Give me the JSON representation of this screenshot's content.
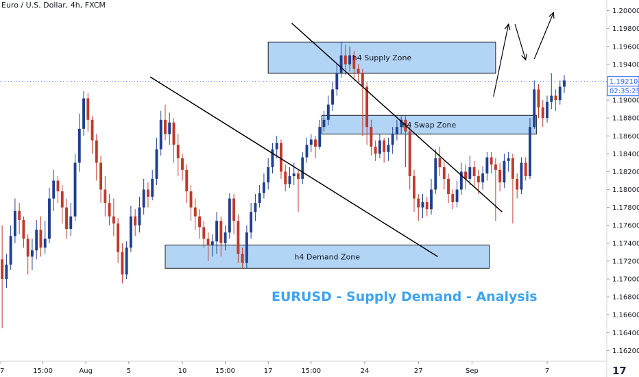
{
  "header": {
    "title": "Euro / U.S. Dollar, 4h, FXCM"
  },
  "caption": "EURUSD - Supply Demand - Analysis",
  "zones": [
    {
      "label": "h4 Supply Zone",
      "x1": 62.5,
      "x2": 115.5,
      "ylo": 1.193,
      "yhi": 1.1965,
      "color": "#7fb8ef"
    },
    {
      "label": "h4 Swap Zone",
      "x1": 75,
      "x2": 125,
      "ylo": 1.1862,
      "yhi": 1.1883,
      "color": "#7fb8ef"
    },
    {
      "label": "h4 Demand Zone",
      "x1": 38.5,
      "x2": 114,
      "ylo": 1.1712,
      "yhi": 1.1738,
      "color": "#7fb8ef"
    }
  ],
  "price_tags": [
    {
      "text": "1.19210",
      "kind": "current"
    },
    {
      "text": "02:35:25",
      "kind": "timer"
    }
  ],
  "chart_data": {
    "type": "candlestick",
    "symbol": "EURUSD",
    "interval": "4h",
    "x_range": [
      0,
      141.4
    ],
    "ylim": [
      1.1608,
      1.2012
    ],
    "grid": false,
    "y_ticks": [
      1.162,
      1.164,
      1.166,
      1.168,
      1.17,
      1.172,
      1.174,
      1.176,
      1.178,
      1.18,
      1.182,
      1.184,
      1.186,
      1.188,
      1.19,
      1.192,
      1.194,
      1.196,
      1.198,
      1.2
    ],
    "y_tick_labels": [
      "1.16200",
      "1.16400",
      "1.16600",
      "1.16800",
      "1.17000",
      "1.17200",
      "1.17400",
      "1.17600",
      "1.17800",
      "1.18000",
      "1.18200",
      "1.18400",
      "1.18600",
      "1.18800",
      "1.19000",
      "1.19200",
      "1.19400",
      "1.19600",
      "1.19800",
      "1.20000"
    ],
    "x_ticks": [
      {
        "x": 0,
        "label": "27"
      },
      {
        "x": 10,
        "label": "15:00"
      },
      {
        "x": 20,
        "label": "Aug"
      },
      {
        "x": 30,
        "label": "5"
      },
      {
        "x": 42.5,
        "label": "10"
      },
      {
        "x": 52.5,
        "label": "15:00"
      },
      {
        "x": 62.5,
        "label": "17"
      },
      {
        "x": 72.5,
        "label": "15:00"
      },
      {
        "x": 85,
        "label": "24"
      },
      {
        "x": 97.5,
        "label": "27"
      },
      {
        "x": 110,
        "label": "Sep"
      },
      {
        "x": 127.5,
        "label": "7"
      }
    ],
    "current_price": 1.1921,
    "candles": [
      [
        1.1722,
        1.17,
        1.176,
        1.1645
      ],
      [
        1.17,
        1.1716,
        1.1728,
        1.169
      ],
      [
        1.1716,
        1.1748,
        1.176,
        1.171
      ],
      [
        1.1748,
        1.1776,
        1.179,
        1.174
      ],
      [
        1.1776,
        1.1766,
        1.1785,
        1.175
      ],
      [
        1.1766,
        1.1745,
        1.177,
        1.1735
      ],
      [
        1.1745,
        1.1725,
        1.175,
        1.1705
      ],
      [
        1.1725,
        1.1732,
        1.1745,
        1.171
      ],
      [
        1.1732,
        1.1755,
        1.1766,
        1.1722
      ],
      [
        1.1755,
        1.1735,
        1.177,
        1.1725
      ],
      [
        1.1735,
        1.1745,
        1.1765,
        1.1728
      ],
      [
        1.1745,
        1.179,
        1.1802,
        1.174
      ],
      [
        1.179,
        1.181,
        1.1822,
        1.1776
      ],
      [
        1.181,
        1.1798,
        1.1815,
        1.1785
      ],
      [
        1.1798,
        1.178,
        1.1805,
        1.1762
      ],
      [
        1.178,
        1.1756,
        1.179,
        1.1745
      ],
      [
        1.1756,
        1.177,
        1.1785,
        1.1748
      ],
      [
        1.177,
        1.183,
        1.184,
        1.1765
      ],
      [
        1.183,
        1.1868,
        1.1885,
        1.182
      ],
      [
        1.1868,
        1.1902,
        1.191,
        1.186
      ],
      [
        1.1902,
        1.1878,
        1.1908,
        1.1865
      ],
      [
        1.1878,
        1.1855,
        1.1882,
        1.184
      ],
      [
        1.1855,
        1.183,
        1.1862,
        1.181
      ],
      [
        1.183,
        1.18,
        1.1838,
        1.1785
      ],
      [
        1.18,
        1.1785,
        1.1815,
        1.177
      ],
      [
        1.1785,
        1.177,
        1.1795,
        1.176
      ],
      [
        1.177,
        1.1762,
        1.179,
        1.1748
      ],
      [
        1.1762,
        1.173,
        1.1768,
        1.1718
      ],
      [
        1.173,
        1.1705,
        1.174,
        1.1695
      ],
      [
        1.1705,
        1.1735,
        1.1742,
        1.17
      ],
      [
        1.1735,
        1.177,
        1.1782,
        1.173
      ],
      [
        1.177,
        1.176,
        1.1778,
        1.1748
      ],
      [
        1.176,
        1.178,
        1.1792,
        1.1752
      ],
      [
        1.178,
        1.18,
        1.1812,
        1.1772
      ],
      [
        1.18,
        1.1792,
        1.1808,
        1.178
      ],
      [
        1.1792,
        1.1812,
        1.1822,
        1.1788
      ],
      [
        1.1812,
        1.1845,
        1.1858,
        1.1805
      ],
      [
        1.1845,
        1.1878,
        1.1888,
        1.1838
      ],
      [
        1.1878,
        1.1862,
        1.1895,
        1.1855
      ],
      [
        1.1862,
        1.1875,
        1.1886,
        1.185
      ],
      [
        1.1875,
        1.185,
        1.188,
        1.183
      ],
      [
        1.185,
        1.1835,
        1.1862,
        1.1815
      ],
      [
        1.1835,
        1.1822,
        1.184,
        1.181
      ],
      [
        1.1822,
        1.1798,
        1.1828,
        1.1785
      ],
      [
        1.1798,
        1.178,
        1.1805,
        1.1765
      ],
      [
        1.178,
        1.177,
        1.179,
        1.1755
      ],
      [
        1.177,
        1.1758,
        1.1778,
        1.1745
      ],
      [
        1.1758,
        1.1745,
        1.1765,
        1.1735
      ],
      [
        1.1745,
        1.1738,
        1.1752,
        1.172
      ],
      [
        1.1738,
        1.1742,
        1.175,
        1.1725
      ],
      [
        1.1742,
        1.1765,
        1.1775,
        1.1728
      ],
      [
        1.1765,
        1.174,
        1.177,
        1.1725
      ],
      [
        1.174,
        1.1752,
        1.176,
        1.1732
      ],
      [
        1.1752,
        1.179,
        1.1796,
        1.1745
      ],
      [
        1.179,
        1.1765,
        1.1795,
        1.175
      ],
      [
        1.1765,
        1.1728,
        1.1772,
        1.1718
      ],
      [
        1.1728,
        1.1718,
        1.1735,
        1.1712
      ],
      [
        1.1718,
        1.1752,
        1.176,
        1.1712
      ],
      [
        1.1752,
        1.1775,
        1.1785,
        1.1745
      ],
      [
        1.1775,
        1.1785,
        1.1795,
        1.1765
      ],
      [
        1.1785,
        1.1796,
        1.1805,
        1.178
      ],
      [
        1.1796,
        1.1808,
        1.1818,
        1.179
      ],
      [
        1.1808,
        1.1825,
        1.1835,
        1.18
      ],
      [
        1.1825,
        1.1845,
        1.1852,
        1.1818
      ],
      [
        1.1845,
        1.1852,
        1.186,
        1.1835
      ],
      [
        1.1852,
        1.182,
        1.1856,
        1.1812
      ],
      [
        1.182,
        1.1806,
        1.1828,
        1.1798
      ],
      [
        1.1806,
        1.1815,
        1.1825,
        1.1802
      ],
      [
        1.1815,
        1.1818,
        1.183,
        1.1805
      ],
      [
        1.1818,
        1.1812,
        1.1822,
        1.1775
      ],
      [
        1.1812,
        1.1836,
        1.1842,
        1.1806
      ],
      [
        1.1836,
        1.185,
        1.1858,
        1.183
      ],
      [
        1.185,
        1.1856,
        1.1862,
        1.1842
      ],
      [
        1.1856,
        1.1848,
        1.186,
        1.1835
      ],
      [
        1.1848,
        1.187,
        1.1878,
        1.1845
      ],
      [
        1.187,
        1.1878,
        1.1888,
        1.1865
      ],
      [
        1.1878,
        1.1895,
        1.1905,
        1.1872
      ],
      [
        1.1895,
        1.1912,
        1.192,
        1.1888
      ],
      [
        1.1912,
        1.193,
        1.194,
        1.1905
      ],
      [
        1.193,
        1.195,
        1.1965,
        1.1925
      ],
      [
        1.195,
        1.194,
        1.1962,
        1.1928
      ],
      [
        1.194,
        1.195,
        1.196,
        1.1932
      ],
      [
        1.195,
        1.1935,
        1.1955,
        1.1922
      ],
      [
        1.1935,
        1.193,
        1.194,
        1.192
      ],
      [
        1.193,
        1.1915,
        1.1935,
        1.186
      ],
      [
        1.1915,
        1.187,
        1.192,
        1.185
      ],
      [
        1.187,
        1.1848,
        1.1878,
        1.1838
      ],
      [
        1.1848,
        1.184,
        1.1855,
        1.1832
      ],
      [
        1.184,
        1.1855,
        1.1862,
        1.1835
      ],
      [
        1.1855,
        1.1842,
        1.1858,
        1.183
      ],
      [
        1.1842,
        1.185,
        1.1858,
        1.1832
      ],
      [
        1.185,
        1.1862,
        1.187,
        1.184
      ],
      [
        1.1862,
        1.187,
        1.1878,
        1.1855
      ],
      [
        1.187,
        1.1878,
        1.1882,
        1.1862
      ],
      [
        1.1878,
        1.1865,
        1.1882,
        1.1825
      ],
      [
        1.1865,
        1.1815,
        1.187,
        1.18
      ],
      [
        1.1815,
        1.179,
        1.1822,
        1.1775
      ],
      [
        1.179,
        1.178,
        1.1795,
        1.1765
      ],
      [
        1.178,
        1.1786,
        1.1795,
        1.1768
      ],
      [
        1.1786,
        1.1778,
        1.1792,
        1.177
      ],
      [
        1.1778,
        1.18,
        1.1812,
        1.1772
      ],
      [
        1.18,
        1.1835,
        1.1845,
        1.1795
      ],
      [
        1.1835,
        1.1825,
        1.1848,
        1.1815
      ],
      [
        1.1825,
        1.1812,
        1.1832,
        1.18
      ],
      [
        1.1812,
        1.1795,
        1.1818,
        1.1785
      ],
      [
        1.1795,
        1.1786,
        1.18,
        1.1778
      ],
      [
        1.1786,
        1.18,
        1.181,
        1.178
      ],
      [
        1.18,
        1.182,
        1.183,
        1.1794
      ],
      [
        1.182,
        1.1812,
        1.1828,
        1.18
      ],
      [
        1.1812,
        1.1825,
        1.1838,
        1.1805
      ],
      [
        1.1825,
        1.1815,
        1.1832,
        1.1802
      ],
      [
        1.1815,
        1.1808,
        1.1822,
        1.1795
      ],
      [
        1.1808,
        1.1818,
        1.1826,
        1.18
      ],
      [
        1.1818,
        1.1836,
        1.1842,
        1.181
      ],
      [
        1.1836,
        1.1828,
        1.1842,
        1.1818
      ],
      [
        1.1828,
        1.1822,
        1.1835,
        1.1765
      ],
      [
        1.1822,
        1.1808,
        1.183,
        1.1798
      ],
      [
        1.1808,
        1.1832,
        1.184,
        1.1802
      ],
      [
        1.1832,
        1.1835,
        1.1842,
        1.182
      ],
      [
        1.1835,
        1.1812,
        1.184,
        1.1762
      ],
      [
        1.1812,
        1.18,
        1.1818,
        1.179
      ],
      [
        1.18,
        1.183,
        1.1836,
        1.1795
      ],
      [
        1.183,
        1.1815,
        1.1836,
        1.181
      ],
      [
        1.1815,
        1.187,
        1.188,
        1.1812
      ],
      [
        1.187,
        1.1912,
        1.1922,
        1.1868
      ],
      [
        1.1912,
        1.1892,
        1.1918,
        1.188
      ],
      [
        1.1892,
        1.188,
        1.19,
        1.187
      ],
      [
        1.188,
        1.1898,
        1.1905,
        1.1875
      ],
      [
        1.1898,
        1.1905,
        1.193,
        1.189
      ],
      [
        1.1905,
        1.19,
        1.1912,
        1.1888
      ],
      [
        1.19,
        1.1915,
        1.1922,
        1.1895
      ],
      [
        1.1915,
        1.1922,
        1.1928,
        1.1908
      ]
    ],
    "annotations": {
      "trendlines": [
        {
          "x1": 35,
          "y1": 1.1926,
          "x2": 102,
          "y2": 1.1725
        },
        {
          "x1": 68,
          "y1": 1.1986,
          "x2": 117,
          "y2": 1.1775
        }
      ],
      "arrows": [
        {
          "points": [
            [
              115,
              1.1904
            ],
            [
              118.5,
              1.1985
            ]
          ]
        },
        {
          "points": [
            [
              120,
              1.1985
            ],
            [
              122.5,
              1.1945
            ]
          ]
        },
        {
          "points": [
            [
              124.5,
              1.1946
            ],
            [
              129,
              1.1998
            ]
          ]
        }
      ]
    }
  }
}
